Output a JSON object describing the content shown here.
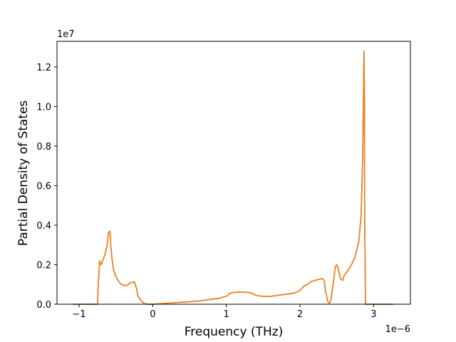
{
  "chart_data": {
    "type": "line",
    "title": "",
    "xlabel": "Frequency (THz)",
    "ylabel": "Partial Density of States",
    "x_offset_text": "1e−6",
    "y_offset_text": "1e7",
    "x_scale_factor": 1e-06,
    "y_scale_factor": 10000000.0,
    "xlim": [
      -1.3,
      3.5
    ],
    "ylim": [
      0,
      1.33
    ],
    "x_ticks": [
      -1,
      0,
      1,
      2,
      3
    ],
    "x_tick_labels": [
      "−1",
      "0",
      "1",
      "2",
      "3"
    ],
    "y_ticks": [
      0.0,
      0.2,
      0.4,
      0.6,
      0.8,
      1.0,
      1.2
    ],
    "y_tick_labels": [
      "0.0",
      "0.2",
      "0.4",
      "0.6",
      "0.8",
      "1.0",
      "1.2"
    ],
    "grid": false,
    "legend": "none",
    "series": [
      {
        "color": "#1f77b4",
        "x": [
          -1.08,
          -0.75,
          -0.74,
          -0.72,
          -0.7,
          -0.68,
          -0.65,
          -0.62,
          -0.6,
          -0.58,
          -0.57,
          -0.55,
          -0.53,
          -0.5,
          -0.47,
          -0.44,
          -0.4,
          -0.35,
          -0.3,
          -0.27,
          -0.25,
          -0.22,
          -0.2,
          -0.16,
          -0.14,
          -0.12,
          -0.1,
          -0.08,
          -0.05,
          0.0,
          0.2,
          0.4,
          0.6,
          0.8,
          0.9,
          1.0,
          1.05,
          1.1,
          1.2,
          1.3,
          1.35,
          1.4,
          1.5,
          1.6,
          1.7,
          1.8,
          1.9,
          1.95,
          2.0,
          2.05,
          2.1,
          2.15,
          2.2,
          2.25,
          2.3,
          2.33,
          2.35,
          2.38,
          2.4,
          2.42,
          2.45,
          2.48,
          2.5,
          2.52,
          2.55,
          2.58,
          2.6,
          2.65,
          2.7,
          2.75,
          2.8,
          2.83,
          2.85,
          2.86,
          2.87,
          2.875,
          2.88,
          2.89,
          2.9,
          3.0,
          3.1,
          3.2,
          3.27
        ],
        "y": [
          0.0,
          0.0,
          0.1,
          0.22,
          0.2,
          0.22,
          0.25,
          0.3,
          0.36,
          0.37,
          0.3,
          0.22,
          0.17,
          0.14,
          0.12,
          0.105,
          0.095,
          0.095,
          0.11,
          0.11,
          0.115,
          0.08,
          0.04,
          0.02,
          0.01,
          0.005,
          0.002,
          0.0,
          0.0,
          0.0,
          0.005,
          0.01,
          0.015,
          0.025,
          0.03,
          0.04,
          0.055,
          0.06,
          0.062,
          0.06,
          0.055,
          0.045,
          0.04,
          0.04,
          0.045,
          0.05,
          0.055,
          0.06,
          0.07,
          0.09,
          0.1,
          0.115,
          0.12,
          0.125,
          0.13,
          0.12,
          0.06,
          0.01,
          0.005,
          0.02,
          0.1,
          0.19,
          0.2,
          0.18,
          0.13,
          0.12,
          0.145,
          0.17,
          0.2,
          0.24,
          0.32,
          0.45,
          0.7,
          1.0,
          1.28,
          1.1,
          0.4,
          0.0,
          0.0,
          0.0,
          0.0,
          0.0,
          0.0
        ]
      },
      {
        "color": "#ff7f0e",
        "x": [
          -1.08,
          -0.75,
          -0.74,
          -0.72,
          -0.7,
          -0.68,
          -0.65,
          -0.62,
          -0.6,
          -0.58,
          -0.57,
          -0.55,
          -0.53,
          -0.5,
          -0.47,
          -0.44,
          -0.4,
          -0.35,
          -0.3,
          -0.27,
          -0.25,
          -0.22,
          -0.2,
          -0.16,
          -0.14,
          -0.12,
          -0.1,
          -0.08,
          -0.05,
          0.0,
          0.2,
          0.4,
          0.6,
          0.8,
          0.9,
          1.0,
          1.05,
          1.1,
          1.2,
          1.3,
          1.35,
          1.4,
          1.5,
          1.6,
          1.7,
          1.8,
          1.9,
          1.95,
          2.0,
          2.05,
          2.1,
          2.15,
          2.2,
          2.25,
          2.3,
          2.33,
          2.35,
          2.38,
          2.4,
          2.42,
          2.45,
          2.48,
          2.5,
          2.52,
          2.55,
          2.58,
          2.6,
          2.65,
          2.7,
          2.75,
          2.8,
          2.83,
          2.85,
          2.86,
          2.87,
          2.875,
          2.88,
          2.89,
          2.9,
          3.0,
          3.1,
          3.2,
          3.27
        ],
        "y": [
          0.0,
          0.0,
          0.1,
          0.22,
          0.2,
          0.22,
          0.25,
          0.3,
          0.36,
          0.37,
          0.3,
          0.22,
          0.17,
          0.14,
          0.12,
          0.105,
          0.095,
          0.095,
          0.11,
          0.11,
          0.115,
          0.08,
          0.04,
          0.02,
          0.01,
          0.005,
          0.002,
          0.0,
          0.0,
          0.0,
          0.005,
          0.01,
          0.015,
          0.025,
          0.03,
          0.04,
          0.055,
          0.06,
          0.062,
          0.06,
          0.055,
          0.045,
          0.04,
          0.04,
          0.045,
          0.05,
          0.055,
          0.06,
          0.07,
          0.09,
          0.1,
          0.115,
          0.12,
          0.125,
          0.13,
          0.12,
          0.06,
          0.01,
          0.005,
          0.02,
          0.1,
          0.19,
          0.2,
          0.18,
          0.13,
          0.12,
          0.145,
          0.17,
          0.2,
          0.24,
          0.32,
          0.45,
          0.7,
          1.0,
          1.28,
          1.1,
          0.4,
          0.0,
          0.0,
          0.0,
          0.0,
          0.0,
          0.0
        ]
      }
    ]
  }
}
